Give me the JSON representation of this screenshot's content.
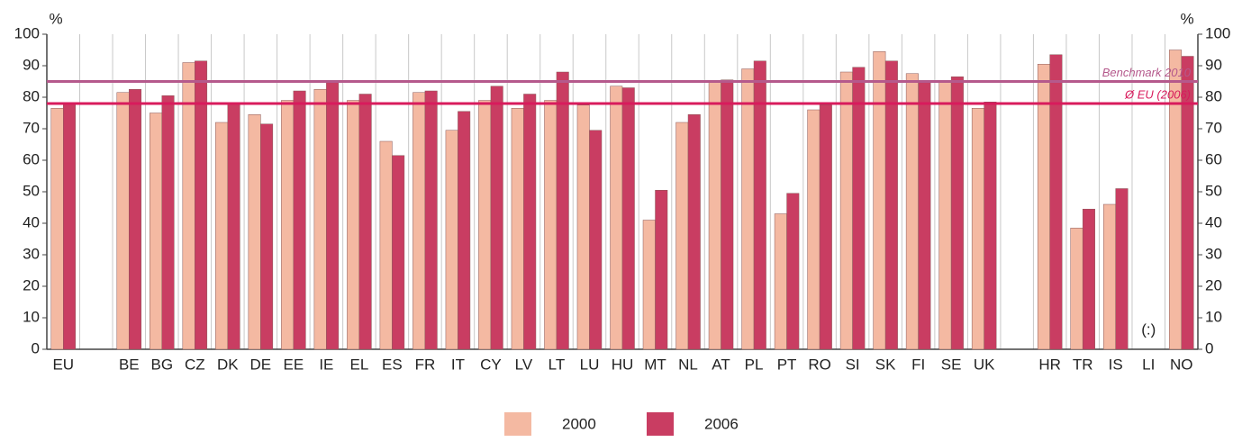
{
  "chart_data": {
    "type": "bar",
    "y_label": "%",
    "y2_label": "%",
    "categories": [
      "EU",
      null,
      "BE",
      "BG",
      "CZ",
      "DK",
      "DE",
      "EE",
      "IE",
      "EL",
      "ES",
      "FR",
      "IT",
      "CY",
      "LV",
      "LT",
      "LU",
      "HU",
      "MT",
      "NL",
      "AT",
      "PL",
      "PT",
      "RO",
      "SI",
      "SK",
      "FI",
      "SE",
      "UK",
      null,
      "HR",
      "TR",
      "IS",
      "LI",
      "NO"
    ],
    "series": [
      {
        "name": "2000",
        "color": "#f4b9a2",
        "values": [
          76.5,
          null,
          81.5,
          75,
          91,
          72,
          74.5,
          79,
          82.5,
          79,
          66,
          81.5,
          69.5,
          79,
          76.5,
          79,
          77.5,
          83.5,
          41,
          72,
          85,
          89,
          43,
          76,
          88,
          94.5,
          87.5,
          85,
          76.5,
          null,
          90.5,
          38.5,
          46,
          null,
          95
        ]
      },
      {
        "name": "2006",
        "color": "#c93d62",
        "values": [
          78,
          null,
          82.5,
          80.5,
          91.5,
          78,
          71.5,
          82,
          85,
          81,
          61.5,
          82,
          75.5,
          83.5,
          81,
          88,
          69.5,
          83,
          50.5,
          74.5,
          85.5,
          91.5,
          49.5,
          77.5,
          89.5,
          91.5,
          85,
          86.5,
          78.5,
          null,
          93.5,
          44.5,
          51,
          null,
          93
        ]
      }
    ],
    "reference_lines": [
      {
        "label": "Benchmark 2010",
        "value": 85,
        "color": "#b5598c"
      },
      {
        "label": "Ø EU (2006)",
        "value": 78,
        "color": "#d81b5c"
      }
    ],
    "annotations": [
      {
        "category": "LI",
        "text": "(:)"
      }
    ],
    "ylim": [
      0,
      100
    ],
    "yticks": [
      0,
      10,
      20,
      30,
      40,
      50,
      60,
      70,
      80,
      90,
      100
    ],
    "y2lim": [
      0,
      100
    ],
    "y2ticks": [
      0,
      10,
      20,
      30,
      40,
      50,
      60,
      70,
      80,
      90,
      100
    ],
    "grid": false
  }
}
